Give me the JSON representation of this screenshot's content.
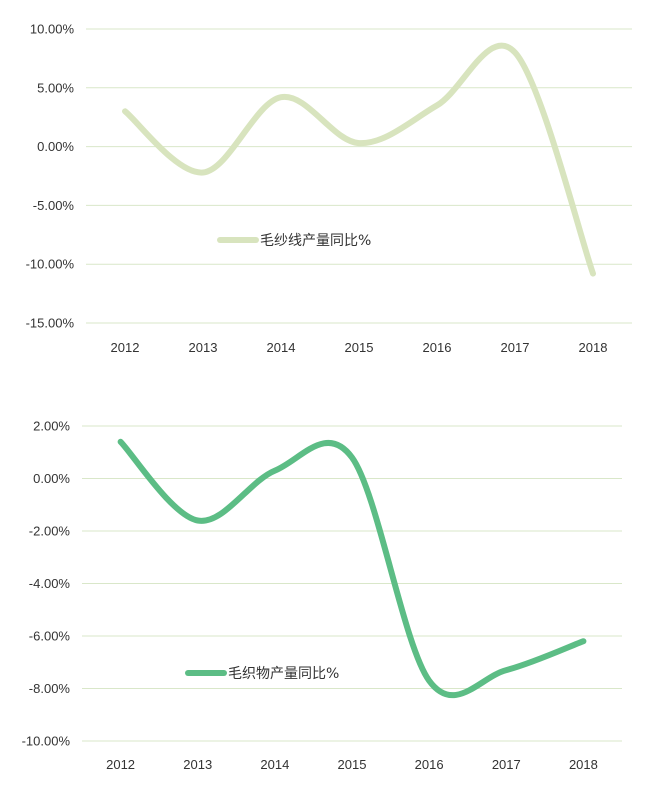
{
  "chart_data": [
    {
      "type": "line",
      "x": [
        "2012",
        "2013",
        "2014",
        "2015",
        "2016",
        "2017",
        "2018"
      ],
      "series": [
        {
          "name": "毛纱线产量同比%",
          "values": [
            3.0,
            -2.2,
            4.2,
            0.3,
            3.5,
            8.0,
            -10.8
          ],
          "color": "#d8e4be"
        }
      ],
      "y_ticks": [
        "10.00%",
        "5.00%",
        "0.00%",
        "-5.00%",
        "-10.00%",
        "-15.00%"
      ],
      "ylim": [
        -15,
        10
      ],
      "grid": true,
      "legend_position": "center-left"
    },
    {
      "type": "line",
      "x": [
        "2012",
        "2013",
        "2014",
        "2015",
        "2016",
        "2017",
        "2018"
      ],
      "series": [
        {
          "name": "毛织物产量同比%",
          "values": [
            1.4,
            -1.6,
            0.3,
            0.8,
            -7.7,
            -7.3,
            -6.2
          ],
          "color": "#5cbd85"
        }
      ],
      "y_ticks": [
        "2.00%",
        "0.00%",
        "-2.00%",
        "-4.00%",
        "-6.00%",
        "-8.00%",
        "-10.00%"
      ],
      "ylim": [
        -10,
        2
      ],
      "grid": true,
      "legend_position": "bottom-left"
    }
  ]
}
